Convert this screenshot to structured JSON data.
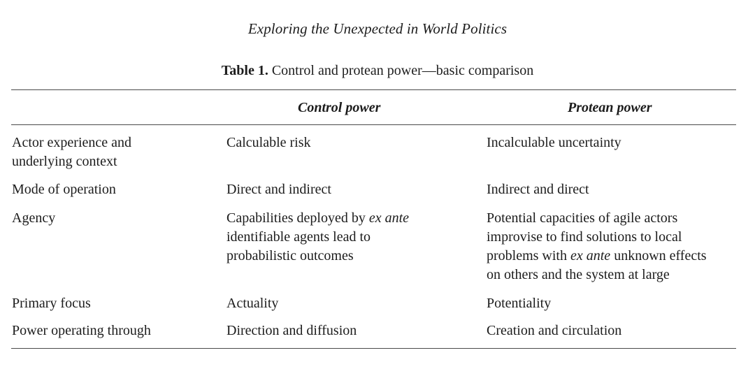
{
  "running_head": "Exploring the Unexpected in World Politics",
  "caption": {
    "label": "Table 1.",
    "text": "Control and protean power—basic comparison"
  },
  "columns": [
    "Control power",
    "Protean power"
  ],
  "rows": {
    "experience": {
      "label": [
        "Actor experience and",
        "underlying context"
      ],
      "control": "Calculable risk",
      "protean": "Incalculable uncertainty"
    },
    "mode": {
      "label": "Mode of operation",
      "control": "Direct and indirect",
      "protean": "Indirect and direct"
    },
    "agency": {
      "label": "Agency",
      "control": {
        "l1_pre": "Capabilities deployed by ",
        "l1_em": "ex ante",
        "l2": "identifiable agents lead to",
        "l3": "probabilistic outcomes"
      },
      "protean": {
        "l1": "Potential capacities of agile actors",
        "l2": "improvise to find solutions to local",
        "l3_pre": "problems with ",
        "l3_em": "ex ante",
        "l3_post": " unknown effects",
        "l4": "on others and the system at large"
      }
    },
    "focus": {
      "label": "Primary focus",
      "control": "Actuality",
      "protean": "Potentiality"
    },
    "through": {
      "label": "Power operating through",
      "control": "Direction and diffusion",
      "protean": "Creation and circulation"
    }
  }
}
